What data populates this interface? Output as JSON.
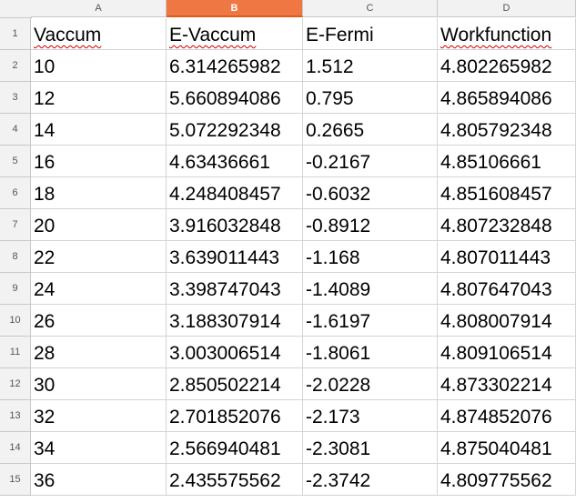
{
  "columns": [
    "A",
    "B",
    "C",
    "D"
  ],
  "selected_column": "B",
  "header_row": {
    "row_number": "1",
    "cells": [
      "Vaccum",
      "E-Vaccum",
      "E-Fermi",
      "Workfunction"
    ]
  },
  "rows": [
    {
      "row_number": "2",
      "cells": [
        "10",
        "6.314265982",
        "1.512",
        "4.802265982"
      ]
    },
    {
      "row_number": "3",
      "cells": [
        "12",
        "5.660894086",
        "0.795",
        "4.865894086"
      ]
    },
    {
      "row_number": "4",
      "cells": [
        "14",
        "5.072292348",
        "0.2665",
        "4.805792348"
      ]
    },
    {
      "row_number": "5",
      "cells": [
        "16",
        "4.63436661",
        "-0.2167",
        "4.85106661"
      ]
    },
    {
      "row_number": "6",
      "cells": [
        "18",
        "4.248408457",
        "-0.6032",
        "4.851608457"
      ]
    },
    {
      "row_number": "7",
      "cells": [
        "20",
        "3.916032848",
        "-0.8912",
        "4.807232848"
      ]
    },
    {
      "row_number": "8",
      "cells": [
        "22",
        "3.639011443",
        "-1.168",
        "4.807011443"
      ]
    },
    {
      "row_number": "9",
      "cells": [
        "24",
        "3.398747043",
        "-1.4089",
        "4.807647043"
      ]
    },
    {
      "row_number": "10",
      "cells": [
        "26",
        "3.188307914",
        "-1.6197",
        "4.808007914"
      ]
    },
    {
      "row_number": "11",
      "cells": [
        "28",
        "3.003006514",
        "-1.8061",
        "4.809106514"
      ]
    },
    {
      "row_number": "12",
      "cells": [
        "30",
        "2.850502214",
        "-2.0228",
        "4.873302214"
      ]
    },
    {
      "row_number": "13",
      "cells": [
        "32",
        "2.701852076",
        "-2.173",
        "4.874852076"
      ]
    },
    {
      "row_number": "14",
      "cells": [
        "34",
        "2.566940481",
        "-2.3081",
        "4.875040481"
      ]
    },
    {
      "row_number": "15",
      "cells": [
        "36",
        "2.435575562",
        "-2.3742",
        "4.809775562"
      ]
    }
  ]
}
